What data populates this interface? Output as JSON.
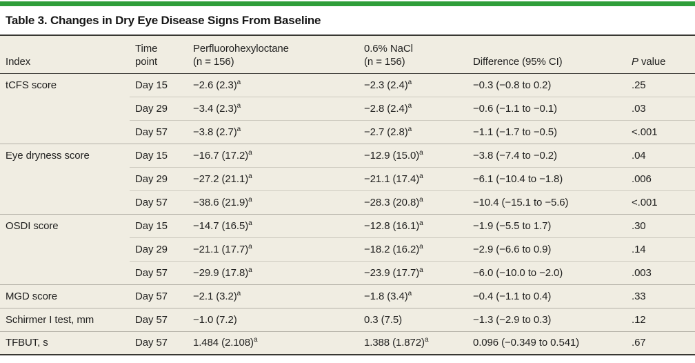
{
  "page": {
    "title": "Table 3. Changes in Dry Eye Disease Signs From Baseline"
  },
  "colors": {
    "accent_green": "#2f9e3a",
    "table_bg": "#f0ede2",
    "rule_dark": "#393833",
    "rule_header": "#4a4944",
    "rule_group": "#b3b0a6",
    "rule_sub": "#cdcabf",
    "text": "#1f1f1e"
  },
  "table": {
    "columns": [
      {
        "id": "index",
        "lines": [
          "Index"
        ]
      },
      {
        "id": "time",
        "lines": [
          "Time",
          "point"
        ]
      },
      {
        "id": "pfho",
        "lines": [
          "Perfluorohexyloctane",
          "(n = 156)"
        ]
      },
      {
        "id": "nacl",
        "lines": [
          "0.6% NaCl",
          "(n = 156)"
        ]
      },
      {
        "id": "diff",
        "lines": [
          "Difference (95% CI)"
        ]
      },
      {
        "id": "p",
        "lines": [
          "P value"
        ],
        "italic_lead": true
      }
    ],
    "rows": [
      {
        "group_start": true,
        "index": "tCFS score",
        "time": "Day 15",
        "pfho": "−2.6 (2.3)",
        "pfho_sup": "a",
        "nacl": "−2.3 (2.4)",
        "nacl_sup": "a",
        "diff": "−0.3 (−0.8 to 0.2)",
        "p": ".25"
      },
      {
        "group_start": false,
        "index": "",
        "time": "Day 29",
        "pfho": "−3.4 (2.3)",
        "pfho_sup": "a",
        "nacl": "−2.8 (2.4)",
        "nacl_sup": "a",
        "diff": "−0.6 (−1.1 to −0.1)",
        "p": ".03"
      },
      {
        "group_start": false,
        "index": "",
        "time": "Day 57",
        "pfho": "−3.8 (2.7)",
        "pfho_sup": "a",
        "nacl": "−2.7 (2.8)",
        "nacl_sup": "a",
        "diff": "−1.1 (−1.7 to −0.5)",
        "p": "<.001"
      },
      {
        "group_start": true,
        "index": "Eye dryness score",
        "time": "Day 15",
        "pfho": "−16.7 (17.2)",
        "pfho_sup": "a",
        "nacl": "−12.9 (15.0)",
        "nacl_sup": "a",
        "diff": "−3.8 (−7.4 to −0.2)",
        "p": ".04"
      },
      {
        "group_start": false,
        "index": "",
        "time": "Day 29",
        "pfho": "−27.2 (21.1)",
        "pfho_sup": "a",
        "nacl": "−21.1 (17.4)",
        "nacl_sup": "a",
        "diff": "−6.1 (−10.4 to −1.8)",
        "p": ".006"
      },
      {
        "group_start": false,
        "index": "",
        "time": "Day 57",
        "pfho": "−38.6 (21.9)",
        "pfho_sup": "a",
        "nacl": "−28.3 (20.8)",
        "nacl_sup": "a",
        "diff": "−10.4 (−15.1 to −5.6)",
        "p": "<.001"
      },
      {
        "group_start": true,
        "index": "OSDI score",
        "time": "Day 15",
        "pfho": "−14.7 (16.5)",
        "pfho_sup": "a",
        "nacl": "−12.8 (16.1)",
        "nacl_sup": "a",
        "diff": "−1.9 (−5.5 to 1.7)",
        "p": ".30"
      },
      {
        "group_start": false,
        "index": "",
        "time": "Day 29",
        "pfho": "−21.1 (17.7)",
        "pfho_sup": "a",
        "nacl": "−18.2 (16.2)",
        "nacl_sup": "a",
        "diff": "−2.9 (−6.6 to 0.9)",
        "p": ".14"
      },
      {
        "group_start": false,
        "index": "",
        "time": "Day 57",
        "pfho": "−29.9 (17.8)",
        "pfho_sup": "a",
        "nacl": "−23.9 (17.7)",
        "nacl_sup": "a",
        "diff": "−6.0 (−10.0 to −2.0)",
        "p": ".003"
      },
      {
        "group_start": true,
        "index": "MGD score",
        "time": "Day 57",
        "pfho": "−2.1 (3.2)",
        "pfho_sup": "a",
        "nacl": "−1.8 (3.4)",
        "nacl_sup": "a",
        "diff": "−0.4 (−1.1 to 0.4)",
        "p": ".33"
      },
      {
        "group_start": true,
        "index": "Schirmer I test, mm",
        "time": "Day 57",
        "pfho": "−1.0 (7.2)",
        "pfho_sup": "",
        "nacl": "0.3 (7.5)",
        "nacl_sup": "",
        "diff": "−1.3 (−2.9 to 0.3)",
        "p": ".12"
      },
      {
        "group_start": true,
        "index": "TFBUT, s",
        "time": "Day 57",
        "pfho": "1.484 (2.108)",
        "pfho_sup": "a",
        "nacl": "1.388 (1.872)",
        "nacl_sup": "a",
        "diff": "0.096 (−0.349 to 0.541)",
        "p": ".67"
      }
    ]
  }
}
